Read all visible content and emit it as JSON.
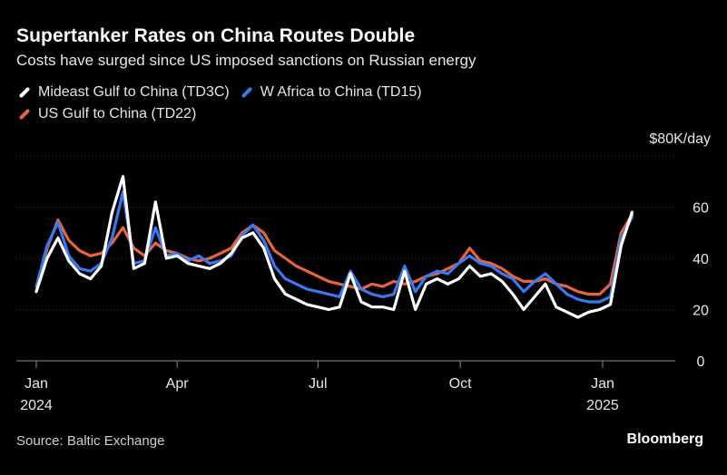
{
  "chart_data": {
    "type": "line",
    "title": "Supertanker Rates on China Routes Double",
    "subtitle": "Costs have surged since US imposed sanctions on Russian energy",
    "unit_label": "$80K/day",
    "ylim": [
      0,
      80
    ],
    "yticks": [
      0,
      20,
      40,
      60
    ],
    "xlim": [
      "2024-01-01",
      "2025-01-28"
    ],
    "xticks": [
      {
        "date": "2024-01-01",
        "label": "Jan",
        "sublabel": "2024"
      },
      {
        "date": "2024-04-01",
        "label": "Apr",
        "sublabel": ""
      },
      {
        "date": "2024-07-01",
        "label": "Jul",
        "sublabel": ""
      },
      {
        "date": "2024-10-01",
        "label": "Oct",
        "sublabel": ""
      },
      {
        "date": "2025-01-01",
        "label": "Jan",
        "sublabel": "2025"
      }
    ],
    "grid": true,
    "legend_position": "top-left",
    "series": [
      {
        "name": "US Gulf to China (TD22)",
        "color": "#e8643c",
        "points": [
          [
            "2024-01-01",
            27
          ],
          [
            "2024-01-08",
            44
          ],
          [
            "2024-01-15",
            55
          ],
          [
            "2024-01-22",
            47
          ],
          [
            "2024-01-29",
            43
          ],
          [
            "2024-02-05",
            41
          ],
          [
            "2024-02-12",
            42
          ],
          [
            "2024-02-19",
            46
          ],
          [
            "2024-02-26",
            52
          ],
          [
            "2024-03-04",
            44
          ],
          [
            "2024-03-11",
            41
          ],
          [
            "2024-03-18",
            46
          ],
          [
            "2024-03-25",
            43
          ],
          [
            "2024-04-01",
            42
          ],
          [
            "2024-04-08",
            40
          ],
          [
            "2024-04-15",
            39
          ],
          [
            "2024-04-22",
            40
          ],
          [
            "2024-04-29",
            42
          ],
          [
            "2024-05-06",
            44
          ],
          [
            "2024-05-13",
            50
          ],
          [
            "2024-05-20",
            53
          ],
          [
            "2024-05-27",
            50
          ],
          [
            "2024-06-03",
            43
          ],
          [
            "2024-06-10",
            40
          ],
          [
            "2024-06-17",
            37
          ],
          [
            "2024-06-24",
            35
          ],
          [
            "2024-07-01",
            33
          ],
          [
            "2024-07-08",
            31
          ],
          [
            "2024-07-15",
            30
          ],
          [
            "2024-07-22",
            29
          ],
          [
            "2024-07-29",
            28
          ],
          [
            "2024-08-05",
            30
          ],
          [
            "2024-08-12",
            29
          ],
          [
            "2024-08-19",
            31
          ],
          [
            "2024-08-26",
            30
          ],
          [
            "2024-09-02",
            31
          ],
          [
            "2024-09-09",
            33
          ],
          [
            "2024-09-16",
            34
          ],
          [
            "2024-09-23",
            36
          ],
          [
            "2024-09-30",
            38
          ],
          [
            "2024-10-07",
            44
          ],
          [
            "2024-10-14",
            39
          ],
          [
            "2024-10-21",
            38
          ],
          [
            "2024-10-28",
            36
          ],
          [
            "2024-11-04",
            33
          ],
          [
            "2024-11-11",
            31
          ],
          [
            "2024-11-18",
            31
          ],
          [
            "2024-11-25",
            32
          ],
          [
            "2024-12-02",
            30
          ],
          [
            "2024-12-09",
            29
          ],
          [
            "2024-12-16",
            27
          ],
          [
            "2024-12-23",
            26
          ],
          [
            "2024-12-30",
            26
          ],
          [
            "2025-01-06",
            30
          ],
          [
            "2025-01-13",
            50
          ],
          [
            "2025-01-20",
            57
          ]
        ]
      },
      {
        "name": "W Africa to China (TD15)",
        "color": "#3878f0",
        "points": [
          [
            "2024-01-01",
            29
          ],
          [
            "2024-01-08",
            45
          ],
          [
            "2024-01-15",
            54
          ],
          [
            "2024-01-22",
            41
          ],
          [
            "2024-01-29",
            36
          ],
          [
            "2024-02-05",
            35
          ],
          [
            "2024-02-12",
            38
          ],
          [
            "2024-02-19",
            48
          ],
          [
            "2024-02-26",
            66
          ],
          [
            "2024-03-04",
            38
          ],
          [
            "2024-03-11",
            39
          ],
          [
            "2024-03-18",
            52
          ],
          [
            "2024-03-25",
            41
          ],
          [
            "2024-04-01",
            42
          ],
          [
            "2024-04-08",
            39
          ],
          [
            "2024-04-15",
            41
          ],
          [
            "2024-04-22",
            38
          ],
          [
            "2024-04-29",
            39
          ],
          [
            "2024-05-06",
            41
          ],
          [
            "2024-05-13",
            49
          ],
          [
            "2024-05-20",
            53
          ],
          [
            "2024-05-27",
            47
          ],
          [
            "2024-06-03",
            37
          ],
          [
            "2024-06-10",
            32
          ],
          [
            "2024-06-17",
            30
          ],
          [
            "2024-06-24",
            28
          ],
          [
            "2024-07-01",
            27
          ],
          [
            "2024-07-08",
            26
          ],
          [
            "2024-07-15",
            25
          ],
          [
            "2024-07-22",
            35
          ],
          [
            "2024-07-29",
            28
          ],
          [
            "2024-08-05",
            26
          ],
          [
            "2024-08-12",
            25
          ],
          [
            "2024-08-19",
            26
          ],
          [
            "2024-08-26",
            37
          ],
          [
            "2024-09-02",
            27
          ],
          [
            "2024-09-09",
            33
          ],
          [
            "2024-09-16",
            35
          ],
          [
            "2024-09-23",
            34
          ],
          [
            "2024-09-30",
            38
          ],
          [
            "2024-10-07",
            41
          ],
          [
            "2024-10-14",
            38
          ],
          [
            "2024-10-21",
            37
          ],
          [
            "2024-10-28",
            34
          ],
          [
            "2024-11-04",
            32
          ],
          [
            "2024-11-11",
            27
          ],
          [
            "2024-11-18",
            31
          ],
          [
            "2024-11-25",
            34
          ],
          [
            "2024-12-02",
            30
          ],
          [
            "2024-12-09",
            26
          ],
          [
            "2024-12-16",
            24
          ],
          [
            "2024-12-23",
            23
          ],
          [
            "2024-12-30",
            23
          ],
          [
            "2025-01-06",
            25
          ],
          [
            "2025-01-13",
            48
          ],
          [
            "2025-01-20",
            56
          ]
        ]
      },
      {
        "name": "Mideast Gulf to China (TD3C)",
        "color": "#ffffff",
        "points": [
          [
            "2024-01-01",
            27
          ],
          [
            "2024-01-08",
            40
          ],
          [
            "2024-01-15",
            48
          ],
          [
            "2024-01-22",
            39
          ],
          [
            "2024-01-29",
            34
          ],
          [
            "2024-02-05",
            32
          ],
          [
            "2024-02-12",
            37
          ],
          [
            "2024-02-19",
            58
          ],
          [
            "2024-02-26",
            72
          ],
          [
            "2024-03-04",
            36
          ],
          [
            "2024-03-11",
            38
          ],
          [
            "2024-03-18",
            62
          ],
          [
            "2024-03-25",
            40
          ],
          [
            "2024-04-01",
            41
          ],
          [
            "2024-04-08",
            38
          ],
          [
            "2024-04-15",
            37
          ],
          [
            "2024-04-22",
            36
          ],
          [
            "2024-04-29",
            38
          ],
          [
            "2024-05-06",
            42
          ],
          [
            "2024-05-13",
            48
          ],
          [
            "2024-05-20",
            50
          ],
          [
            "2024-05-27",
            44
          ],
          [
            "2024-06-03",
            32
          ],
          [
            "2024-06-10",
            26
          ],
          [
            "2024-06-17",
            24
          ],
          [
            "2024-06-24",
            22
          ],
          [
            "2024-07-01",
            21
          ],
          [
            "2024-07-08",
            20
          ],
          [
            "2024-07-15",
            21
          ],
          [
            "2024-07-22",
            34
          ],
          [
            "2024-07-29",
            23
          ],
          [
            "2024-08-05",
            21
          ],
          [
            "2024-08-12",
            21
          ],
          [
            "2024-08-19",
            20
          ],
          [
            "2024-08-26",
            35
          ],
          [
            "2024-09-02",
            20
          ],
          [
            "2024-09-09",
            30
          ],
          [
            "2024-09-16",
            32
          ],
          [
            "2024-09-23",
            30
          ],
          [
            "2024-09-30",
            32
          ],
          [
            "2024-10-07",
            37
          ],
          [
            "2024-10-14",
            33
          ],
          [
            "2024-10-21",
            34
          ],
          [
            "2024-10-28",
            31
          ],
          [
            "2024-11-04",
            26
          ],
          [
            "2024-11-11",
            20
          ],
          [
            "2024-11-18",
            25
          ],
          [
            "2024-11-25",
            30
          ],
          [
            "2024-12-02",
            21
          ],
          [
            "2024-12-09",
            19
          ],
          [
            "2024-12-16",
            17
          ],
          [
            "2024-12-23",
            19
          ],
          [
            "2024-12-30",
            20
          ],
          [
            "2025-01-06",
            22
          ],
          [
            "2025-01-13",
            45
          ],
          [
            "2025-01-20",
            58
          ]
        ]
      }
    ]
  },
  "legend": {
    "row1": [
      {
        "label": "Mideast Gulf to China (TD3C)",
        "color": "#ffffff",
        "icon": "legend-swatch-white"
      },
      {
        "label": "W Africa to China (TD15)",
        "color": "#3878f0",
        "icon": "legend-swatch-blue"
      }
    ],
    "row2": [
      {
        "label": "US Gulf to China (TD22)",
        "color": "#e8643c",
        "icon": "legend-swatch-orange"
      }
    ]
  },
  "footer": {
    "source": "Source: Baltic Exchange",
    "brand": "Bloomberg"
  },
  "colors": {
    "background": "#000000",
    "gridline": "#3a3a3a",
    "axis": "#8a8a8a",
    "text": "#e6e6e6"
  }
}
